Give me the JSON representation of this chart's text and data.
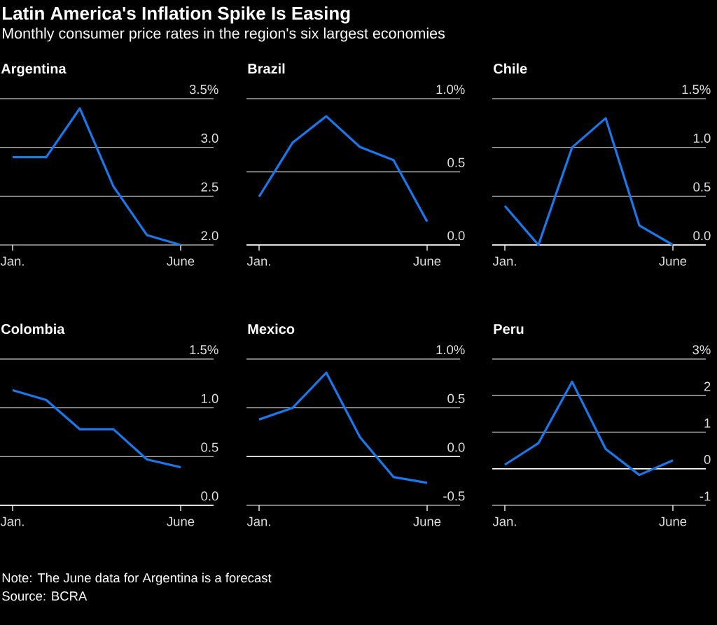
{
  "chart_data": [
    {
      "type": "other",
      "title": "Latin America's Inflation Spike Is Easing",
      "subtitle": "Monthly consumer price rates in the region's six largest economies",
      "annotations": [
        "Note: The June data for Argentina is a forecast",
        "Source: BCRA"
      ]
    },
    {
      "type": "line",
      "title": "Argentina",
      "categories": [
        "Jan.",
        null,
        null,
        null,
        null,
        "June"
      ],
      "values": [
        2.9,
        2.9,
        3.4,
        2.6,
        2.1,
        2.0
      ],
      "color": "#1a78eb",
      "ylim": [
        2.0,
        3.5
      ],
      "yticks": [
        {
          "value": 2.0,
          "label": "2.0"
        },
        {
          "value": 2.5,
          "label": "2.5"
        },
        {
          "value": 3.0,
          "label": "3.0"
        },
        {
          "value": 3.5,
          "label": "3.5%"
        }
      ],
      "grid": "y"
    },
    {
      "type": "line",
      "title": "Brazil",
      "categories": [
        "Jan.",
        null,
        null,
        null,
        null,
        "June"
      ],
      "values": [
        0.33,
        0.7,
        0.88,
        0.67,
        0.58,
        0.16
      ],
      "color": "#1a78eb",
      "ylim": [
        0.0,
        1.0
      ],
      "yticks": [
        {
          "value": 0.0,
          "label": "0.0"
        },
        {
          "value": 0.5,
          "label": "0.5"
        },
        {
          "value": 1.0,
          "label": "1.0%"
        }
      ],
      "grid": "y"
    },
    {
      "type": "line",
      "title": "Chile",
      "categories": [
        "Jan.",
        null,
        null,
        null,
        null,
        "June"
      ],
      "values": [
        0.4,
        0.0,
        1.0,
        1.3,
        0.2,
        0.0
      ],
      "color": "#1a78eb",
      "ylim": [
        0.0,
        1.5
      ],
      "yticks": [
        {
          "value": 0.0,
          "label": "0.0"
        },
        {
          "value": 0.5,
          "label": "0.5"
        },
        {
          "value": 1.0,
          "label": "1.0"
        },
        {
          "value": 1.5,
          "label": "1.5%"
        }
      ],
      "grid": "y"
    },
    {
      "type": "line",
      "title": "Colombia",
      "categories": [
        "Jan.",
        null,
        null,
        null,
        null,
        "June"
      ],
      "values": [
        1.18,
        1.08,
        0.78,
        0.78,
        0.47,
        0.39
      ],
      "color": "#1a78eb",
      "ylim": [
        0.0,
        1.5
      ],
      "yticks": [
        {
          "value": 0.0,
          "label": "0.0"
        },
        {
          "value": 0.5,
          "label": "0.5"
        },
        {
          "value": 1.0,
          "label": "1.0"
        },
        {
          "value": 1.5,
          "label": "1.5%"
        }
      ],
      "grid": "y"
    },
    {
      "type": "line",
      "title": "Mexico",
      "categories": [
        "Jan.",
        null,
        null,
        null,
        null,
        "June"
      ],
      "values": [
        0.38,
        0.5,
        0.86,
        0.2,
        -0.21,
        -0.27
      ],
      "color": "#1a78eb",
      "ylim": [
        -0.5,
        1.0
      ],
      "yticks": [
        {
          "value": -0.5,
          "label": "-0.5"
        },
        {
          "value": 0.0,
          "label": "0.0"
        },
        {
          "value": 0.5,
          "label": "0.5"
        },
        {
          "value": 1.0,
          "label": "1.0%"
        }
      ],
      "grid": "y",
      "ref_lines": [
        {
          "axis": "y",
          "value": 0,
          "color": "#ffffff"
        }
      ]
    },
    {
      "type": "line",
      "title": "Peru",
      "categories": [
        "Jan.",
        null,
        null,
        null,
        null,
        "June"
      ],
      "values": [
        0.11,
        0.7,
        2.38,
        0.54,
        -0.17,
        0.23
      ],
      "color": "#1a78eb",
      "ylim": [
        -1,
        3
      ],
      "yticks": [
        -1,
        0,
        1,
        2,
        {
          "value": 3,
          "label": "3%"
        }
      ],
      "grid": "y",
      "ref_lines": [
        {
          "axis": "y",
          "value": 0,
          "color": "#ffffff"
        }
      ]
    }
  ]
}
